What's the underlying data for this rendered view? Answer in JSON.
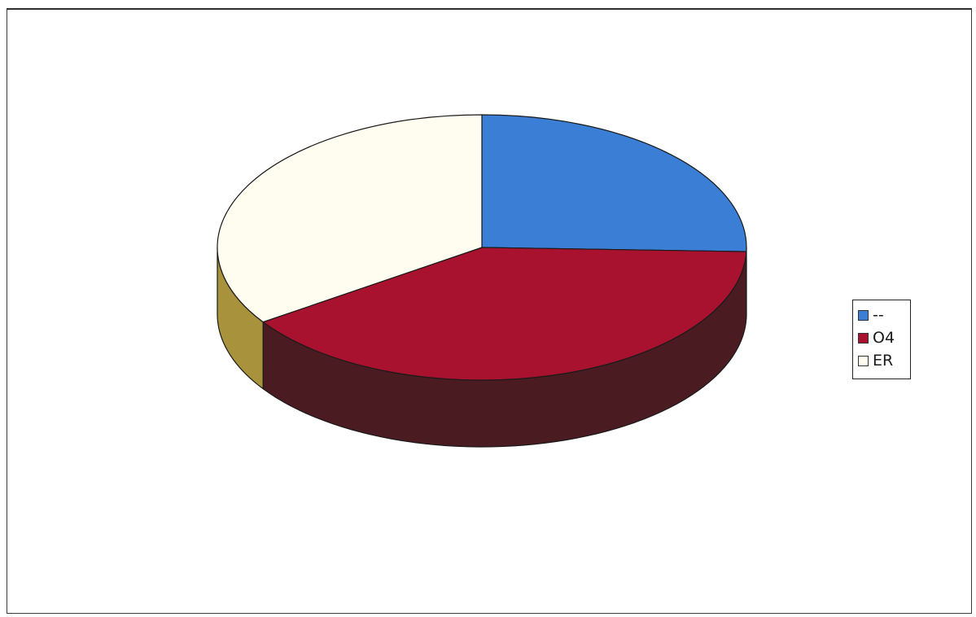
{
  "chart_data": {
    "type": "pie",
    "style": "3d",
    "title": "",
    "slices": [
      {
        "label": "--",
        "value": 25.5,
        "color": "#3a7fd5",
        "side_color": "#2a5c9c"
      },
      {
        "label": "O4",
        "value": 40.0,
        "color": "#a8122e",
        "side_color": "#4a1c22"
      },
      {
        "label": "ER",
        "value": 34.5,
        "color": "#fffdf0",
        "side_color": "#a8923c"
      }
    ],
    "legend_position": "right"
  }
}
